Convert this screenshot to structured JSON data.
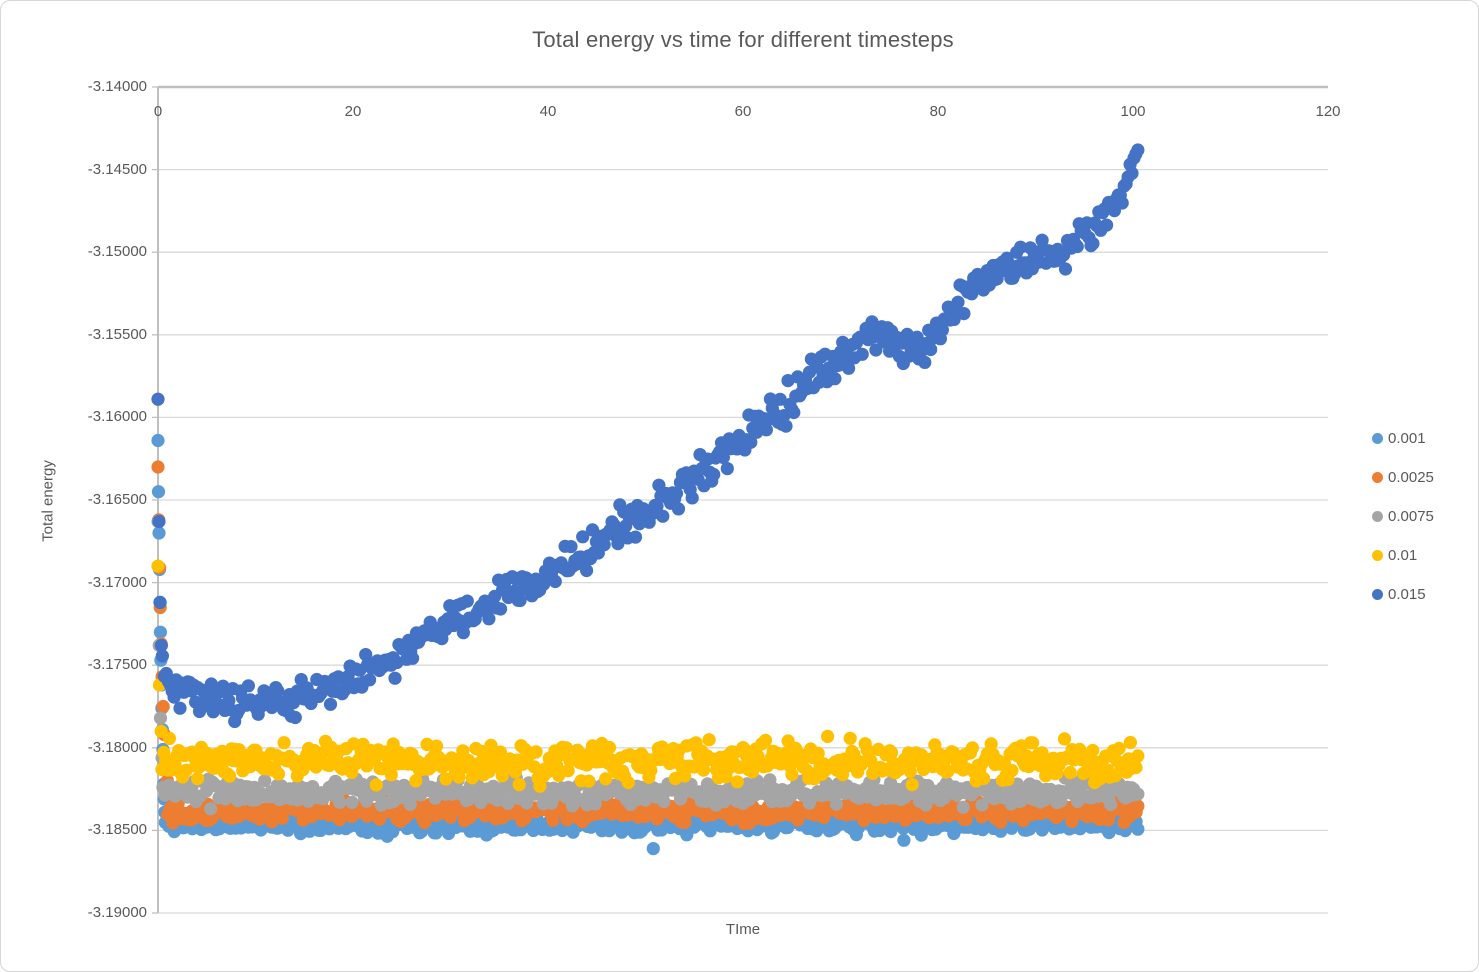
{
  "chart_data": {
    "type": "scatter",
    "title": "Total energy vs time for different timesteps",
    "xlabel": "TIme",
    "ylabel": "Total energy",
    "xlim": [
      0,
      120
    ],
    "ylim": [
      -3.19,
      -3.14
    ],
    "x_ticks": [
      0,
      20,
      40,
      60,
      80,
      100,
      120
    ],
    "y_ticks": [
      -3.14,
      -3.145,
      -3.15,
      -3.155,
      -3.16,
      -3.165,
      -3.17,
      -3.175,
      -3.18,
      -3.185,
      -3.19
    ],
    "y_tick_labels": [
      "-3.14000",
      "-3.14500",
      "-3.15000",
      "-3.15500",
      "-3.16000",
      "-3.16500",
      "-3.17000",
      "-3.17500",
      "-3.18000",
      "-3.18500",
      "-3.19000"
    ],
    "grid": "horizontal-only",
    "legend_position": "right-middle",
    "style": {
      "text_color": "#595959",
      "gridline_color": "#d9d9d9",
      "axis_color": "#bfbfbf",
      "background": "#ffffff"
    },
    "series": [
      {
        "name": "0.001",
        "color": "#5B9BD5",
        "description": "flat band, lowest energy",
        "count": 540,
        "t_start": 0.75,
        "t_end": 100.5,
        "noise": 0.0008,
        "seed": 11,
        "trend": [
          [
            0.75,
            -3.1846
          ],
          [
            100.5,
            -3.1846
          ]
        ],
        "transient": [
          [
            0,
            -3.1614
          ],
          [
            0.05,
            -3.1645
          ],
          [
            0.1,
            -3.167
          ],
          [
            0.15,
            -3.1692
          ],
          [
            0.2,
            -3.1712
          ],
          [
            0.25,
            -3.173
          ],
          [
            0.3,
            -3.1747
          ],
          [
            0.35,
            -3.1762
          ],
          [
            0.4,
            -3.1776
          ],
          [
            0.45,
            -3.1789
          ],
          [
            0.5,
            -3.1801
          ],
          [
            0.55,
            -3.1812
          ],
          [
            0.6,
            -3.1822
          ],
          [
            0.65,
            -3.1831
          ],
          [
            0.7,
            -3.1839
          ]
        ],
        "extras": [
          [
            50.8,
            -3.1861
          ],
          [
            76.5,
            -3.1856
          ]
        ]
      },
      {
        "name": "0.0025",
        "color": "#ED7D31",
        "description": "flat band",
        "count": 560,
        "t_start": 1.0,
        "t_end": 100.5,
        "noise": 0.0009,
        "seed": 22,
        "trend": [
          [
            1.0,
            -3.1838
          ],
          [
            100.5,
            -3.1838
          ]
        ],
        "transient": [
          [
            0,
            -3.163
          ],
          [
            0.07,
            -3.1662
          ],
          [
            0.15,
            -3.1691
          ],
          [
            0.23,
            -3.1715
          ],
          [
            0.32,
            -3.1737
          ],
          [
            0.42,
            -3.1757
          ],
          [
            0.53,
            -3.1775
          ],
          [
            0.65,
            -3.1792
          ],
          [
            0.8,
            -3.1808
          ],
          [
            0.95,
            -3.182
          ]
        ],
        "extras": []
      },
      {
        "name": "0.0075",
        "color": "#A5A5A5",
        "description": "flat band",
        "count": 470,
        "t_start": 0.5,
        "t_end": 100.5,
        "noise": 0.0011,
        "seed": 33,
        "trend": [
          [
            0.5,
            -3.1827
          ],
          [
            100.5,
            -3.1827
          ]
        ],
        "transient": [
          [
            0,
            -3.1663
          ],
          [
            0.12,
            -3.1738
          ],
          [
            0.26,
            -3.1782
          ],
          [
            0.42,
            -3.1806
          ]
        ],
        "extras": []
      },
      {
        "name": "0.01",
        "color": "#FFC000",
        "description": "flat band",
        "count": 520,
        "t_start": 0.4,
        "t_end": 100.5,
        "noise": 0.0018,
        "seed": 44,
        "trend": [
          [
            0.4,
            -3.1808
          ],
          [
            100.5,
            -3.1808
          ]
        ],
        "transient": [
          [
            0,
            -3.169
          ],
          [
            0.15,
            -3.1762
          ],
          [
            0.33,
            -3.179
          ]
        ],
        "extras": []
      },
      {
        "name": "0.015",
        "color": "#4472C4",
        "description": "drifts upward: dips near t=5-15 then rises to about -3.144 at t=100",
        "count": 500,
        "t_start": 0.45,
        "t_end": 100.5,
        "noise": 0.0016,
        "seed": 55,
        "trend": [
          [
            0.45,
            -3.175
          ],
          [
            2,
            -3.1763
          ],
          [
            5,
            -3.1769
          ],
          [
            9,
            -3.1773
          ],
          [
            13,
            -3.1771
          ],
          [
            17,
            -3.1766
          ],
          [
            20,
            -3.1758
          ],
          [
            23,
            -3.1749
          ],
          [
            26,
            -3.1738
          ],
          [
            29,
            -3.1727
          ],
          [
            32,
            -3.1718
          ],
          [
            35,
            -3.171
          ],
          [
            38,
            -3.1701
          ],
          [
            41,
            -3.1692
          ],
          [
            44,
            -3.1681
          ],
          [
            47,
            -3.1668
          ],
          [
            50,
            -3.1657
          ],
          [
            53,
            -3.1645
          ],
          [
            56,
            -3.1633
          ],
          [
            59,
            -3.1618
          ],
          [
            62,
            -3.1604
          ],
          [
            65,
            -3.1589
          ],
          [
            68,
            -3.1572
          ],
          [
            71,
            -3.1557
          ],
          [
            73.5,
            -3.155
          ],
          [
            76,
            -3.1556
          ],
          [
            78.5,
            -3.1561
          ],
          [
            80.5,
            -3.1541
          ],
          [
            83,
            -3.1522
          ],
          [
            85.5,
            -3.1514
          ],
          [
            88,
            -3.1509
          ],
          [
            90.5,
            -3.15
          ],
          [
            93,
            -3.1499
          ],
          [
            95,
            -3.1493
          ],
          [
            97,
            -3.1479
          ],
          [
            98.5,
            -3.1468
          ],
          [
            99.5,
            -3.1455
          ],
          [
            100.5,
            -3.144
          ]
        ],
        "transient": [
          [
            0,
            -3.1589
          ],
          [
            0.1,
            -3.1663
          ],
          [
            0.22,
            -3.1712
          ],
          [
            0.35,
            -3.1738
          ]
        ],
        "extras": []
      }
    ]
  }
}
